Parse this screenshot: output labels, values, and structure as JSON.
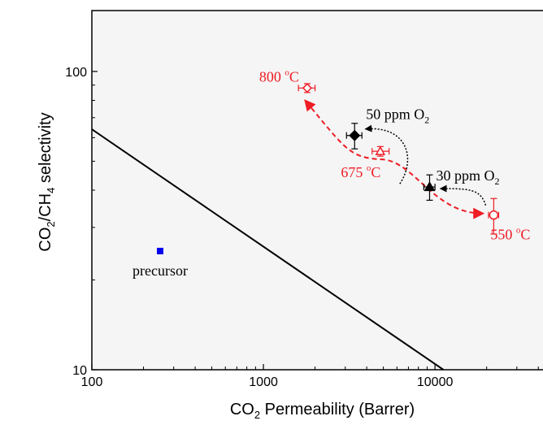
{
  "chart_data": {
    "type": "scatter",
    "xlabel": {
      "main": "CO",
      "sub": "2",
      "rest": " Permeability (Barrer)"
    },
    "ylabel": {
      "a": "CO",
      "a_sub": "2",
      "b": "/CH",
      "b_sub": "4",
      "c": " selectivity"
    },
    "x_scale": "log",
    "y_scale": "log",
    "xlim": [
      100,
      45000
    ],
    "ylim": [
      10,
      160
    ],
    "x_ticks": [
      {
        "value": 100,
        "label": "100"
      },
      {
        "value": 1000,
        "label": "1000"
      },
      {
        "value": 10000,
        "label": "10000"
      }
    ],
    "y_ticks": [
      {
        "value": 10,
        "label": "10"
      },
      {
        "value": 100,
        "label": "100"
      }
    ],
    "upper_bound_line": [
      [
        100,
        64
      ],
      [
        11200,
        10
      ]
    ],
    "points": {
      "precursor": {
        "x": 250,
        "y": 25,
        "color": "#0000ee",
        "label": "precursor"
      },
      "red_550": {
        "x": 22000,
        "y": 33,
        "x_err": [
          20500,
          23500
        ],
        "y_err": [
          28.5,
          37.5
        ],
        "label": "550 °C",
        "label_main": "550 ",
        "label_sup": "o",
        "label_unit": "C"
      },
      "red_675": {
        "x": 4800,
        "y": 54,
        "x_err": [
          4300,
          5400
        ],
        "y_err": [
          52,
          56
        ],
        "label": "675 °C",
        "label_main": "675 ",
        "label_sup": "o",
        "label_unit": "C"
      },
      "red_800": {
        "x": 1800,
        "y": 88,
        "x_err": [
          1600,
          2000
        ],
        "y_err": [
          85,
          91
        ],
        "label": "800 °C",
        "label_main": "800 ",
        "label_sup": "o",
        "label_unit": "C"
      },
      "o2_50ppm": {
        "x": 3400,
        "y": 61,
        "x_err": [
          3050,
          3750
        ],
        "y_err": [
          55,
          67
        ],
        "label": "50 ppm O2",
        "label_main": "50 ppm O",
        "label_sub": "2"
      },
      "o2_30ppm": {
        "x": 9300,
        "y": 41,
        "x_err": [
          8600,
          10000
        ],
        "y_err": [
          37,
          45
        ],
        "label": "30 ppm O2",
        "label_main": "30 ppm O",
        "label_sub": "2"
      }
    },
    "red_color": "#ee1c24",
    "black_color": "#000000",
    "grid": false,
    "legend": "none"
  }
}
